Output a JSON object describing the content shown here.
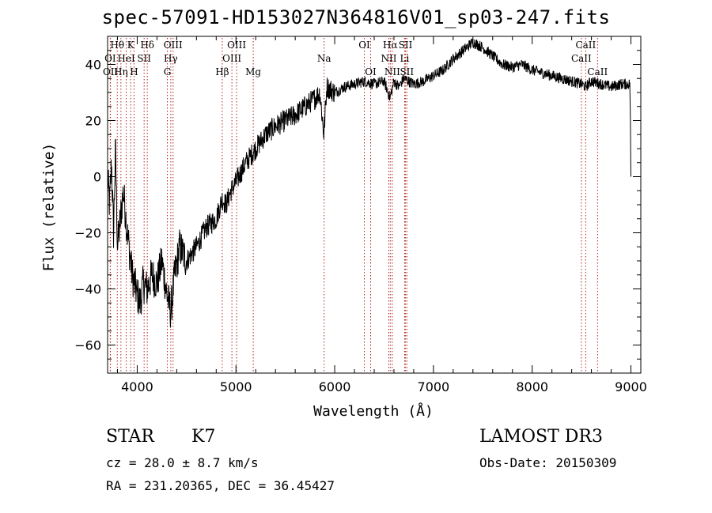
{
  "chart_data": {
    "type": "line",
    "title": "spec-57091-HD153027N364816V01_sp03-247.fits",
    "xlabel": "Wavelength (Å)",
    "ylabel": "Flux (relative)",
    "xlim": [
      3700,
      9100
    ],
    "ylim": [
      -70,
      50
    ],
    "x_ticks": [
      4000,
      5000,
      6000,
      7000,
      8000,
      9000
    ],
    "y_ticks": [
      -60,
      -40,
      -20,
      0,
      20,
      40
    ],
    "grid": false,
    "series": [
      {
        "name": "flux",
        "x": [
          3700,
          3720,
          3740,
          3760,
          3780,
          3800,
          3830,
          3860,
          3900,
          3950,
          4000,
          4030,
          4060,
          4100,
          4150,
          4200,
          4250,
          4300,
          4340,
          4380,
          4430,
          4500,
          4600,
          4700,
          4800,
          4860,
          4900,
          4950,
          5000,
          5100,
          5200,
          5300,
          5400,
          5500,
          5600,
          5700,
          5800,
          5850,
          5890,
          5920,
          6000,
          6100,
          6200,
          6300,
          6400,
          6500,
          6560,
          6600,
          6650,
          6700,
          6800,
          6900,
          7000,
          7100,
          7200,
          7300,
          7400,
          7450,
          7500,
          7600,
          7700,
          7800,
          7900,
          8000,
          8100,
          8200,
          8300,
          8400,
          8500,
          8540,
          8600,
          8700,
          8800,
          8900,
          8990,
          9000,
          9010
        ],
        "y": [
          0,
          -10,
          5,
          -20,
          10,
          -25,
          -15,
          -5,
          -20,
          -35,
          -42,
          -45,
          -38,
          -40,
          -35,
          -38,
          -30,
          -42,
          -48,
          -35,
          -25,
          -30,
          -25,
          -18,
          -15,
          -8,
          -10,
          -5,
          -2,
          5,
          10,
          15,
          18,
          20,
          22,
          25,
          28,
          30,
          15,
          32,
          30,
          32,
          33,
          34,
          33,
          34,
          28,
          34,
          32,
          35,
          33,
          34,
          36,
          38,
          42,
          45,
          48,
          47,
          46,
          43,
          40,
          39,
          40,
          38,
          37,
          36,
          35,
          34,
          33,
          32,
          34,
          33,
          32,
          33,
          33,
          5,
          0
        ]
      }
    ],
    "emission_lines": [
      {
        "label": "Hθ",
        "wavelength": 3798,
        "row": 1
      },
      {
        "label": "K",
        "wavelength": 3934,
        "row": 1
      },
      {
        "label": "Hδ",
        "wavelength": 4102,
        "row": 1
      },
      {
        "label": "OIII",
        "wavelength": 4363,
        "row": 1
      },
      {
        "label": "OIII",
        "wavelength": 5007,
        "row": 1
      },
      {
        "label": "OI",
        "wavelength": 6300,
        "row": 1
      },
      {
        "label": "Hα",
        "wavelength": 6563,
        "row": 1
      },
      {
        "label": "SII",
        "wavelength": 6717,
        "row": 1
      },
      {
        "label": "CaII",
        "wavelength": 8542,
        "row": 1
      },
      {
        "label": "OI",
        "wavelength": 3727,
        "row": 2
      },
      {
        "label": "HeI",
        "wavelength": 3889,
        "row": 2
      },
      {
        "label": "SII",
        "wavelength": 4070,
        "row": 2
      },
      {
        "label": "Hγ",
        "wavelength": 4340,
        "row": 2
      },
      {
        "label": "OIII",
        "wavelength": 4959,
        "row": 2
      },
      {
        "label": "Na",
        "wavelength": 5893,
        "row": 2
      },
      {
        "label": "NII",
        "wavelength": 6548,
        "row": 2
      },
      {
        "label": "Li",
        "wavelength": 6708,
        "row": 2
      },
      {
        "label": "CaII",
        "wavelength": 8498,
        "row": 2
      },
      {
        "label": "OII",
        "wavelength": 3729,
        "row": 3
      },
      {
        "label": "Hη",
        "wavelength": 3835,
        "row": 3
      },
      {
        "label": "H",
        "wavelength": 3968,
        "row": 3
      },
      {
        "label": "G",
        "wavelength": 4305,
        "row": 3
      },
      {
        "label": "Hβ",
        "wavelength": 4861,
        "row": 3
      },
      {
        "label": "Mg",
        "wavelength": 5175,
        "row": 3
      },
      {
        "label": "OI",
        "wavelength": 6364,
        "row": 3
      },
      {
        "label": "NII",
        "wavelength": 6583,
        "row": 3
      },
      {
        "label": "SII",
        "wavelength": 6731,
        "row": 3
      },
      {
        "label": "CaII",
        "wavelength": 8662,
        "row": 3
      }
    ]
  },
  "info": {
    "object_type": "STAR",
    "subclass": "K7",
    "survey": "LAMOST DR3",
    "redshift": "cz = 28.0 ± 8.7 km/s",
    "obs_date": "Obs-Date: 20150309",
    "coords": "RA = 231.20365, DEC =  36.45427"
  }
}
